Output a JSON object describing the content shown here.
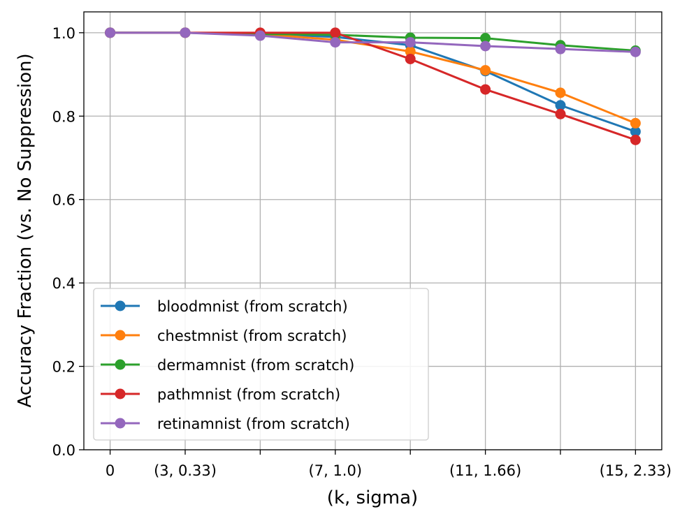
{
  "chart_data": {
    "type": "line",
    "title": "",
    "xlabel": "(k, sigma)",
    "ylabel": "Accuracy Fraction (vs. No Suppression)",
    "x_tick_labels": [
      "0",
      "(3, 0.33)",
      "",
      "(7, 1.0)",
      "",
      "(11, 1.66)",
      "",
      "(15, 2.33)"
    ],
    "y_tick_labels": [
      "0.0",
      "0.2",
      "0.4",
      "0.6",
      "0.8",
      "1.0"
    ],
    "y_ticks": [
      0.0,
      0.2,
      0.4,
      0.6,
      0.8,
      1.0
    ],
    "ylim": [
      0.0,
      1.05
    ],
    "xlim": [
      -0.35,
      7.35
    ],
    "grid": true,
    "legend_position": "lower-left",
    "series": [
      {
        "name": "bloodmnist (from scratch)",
        "color": "#1f77b4",
        "values": [
          1.0,
          1.0,
          0.997,
          0.99,
          0.97,
          0.908,
          0.826,
          0.763
        ]
      },
      {
        "name": "chestmnist (from scratch)",
        "color": "#ff7f0e",
        "values": [
          1.0,
          1.0,
          0.997,
          0.983,
          0.955,
          0.91,
          0.856,
          0.783
        ]
      },
      {
        "name": "dermamnist (from scratch)",
        "color": "#2ca02c",
        "values": [
          1.0,
          1.0,
          0.997,
          0.995,
          0.988,
          0.987,
          0.97,
          0.957
        ]
      },
      {
        "name": "pathmnist (from scratch)",
        "color": "#d62728",
        "values": [
          1.0,
          1.0,
          1.0,
          1.0,
          0.937,
          0.864,
          0.805,
          0.743
        ]
      },
      {
        "name": "retinamnist (from scratch)",
        "color": "#9467bd",
        "values": [
          1.0,
          1.0,
          0.993,
          0.977,
          0.977,
          0.968,
          0.961,
          0.954
        ]
      }
    ]
  }
}
